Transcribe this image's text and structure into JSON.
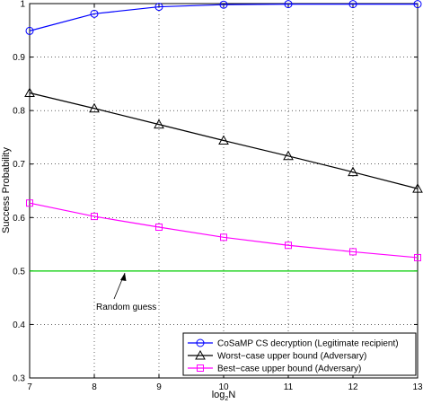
{
  "chart_data": {
    "type": "line",
    "title": "",
    "xlabel": "log2N",
    "ylabel": "Success Probability",
    "xlim": [
      7,
      13
    ],
    "ylim": [
      0.3,
      1.0
    ],
    "x_ticks": [
      "7",
      "8",
      "9",
      "10",
      "11",
      "12",
      "13"
    ],
    "y_ticks": [
      "0.3",
      "0.4",
      "0.5",
      "0.6",
      "0.7",
      "0.8",
      "0.9",
      "1"
    ],
    "grid": true,
    "legend_position": "bottom-right",
    "x": [
      7,
      8,
      9,
      10,
      11,
      12,
      13
    ],
    "series": [
      {
        "name": "CoSaMP CS decryption (Legitimate recipient)",
        "marker": "circle",
        "color": "#0000ff",
        "values": [
          0.949,
          0.981,
          0.994,
          0.998,
          0.999,
          0.999,
          0.999
        ]
      },
      {
        "name": "Worst−case upper bound (Adversary)",
        "marker": "triangle",
        "color": "#000000",
        "values": [
          0.833,
          0.804,
          0.774,
          0.744,
          0.715,
          0.685,
          0.654
        ]
      },
      {
        "name": "Best−case upper bound (Adversary)",
        "marker": "square",
        "color": "#ff00ff",
        "values": [
          0.627,
          0.602,
          0.582,
          0.563,
          0.548,
          0.536,
          0.525
        ]
      }
    ],
    "reference_line": {
      "y": 0.5,
      "color": "#00cc00"
    },
    "annotation": {
      "text": "Random guess",
      "points_to": [
        8.5,
        0.5
      ]
    }
  }
}
